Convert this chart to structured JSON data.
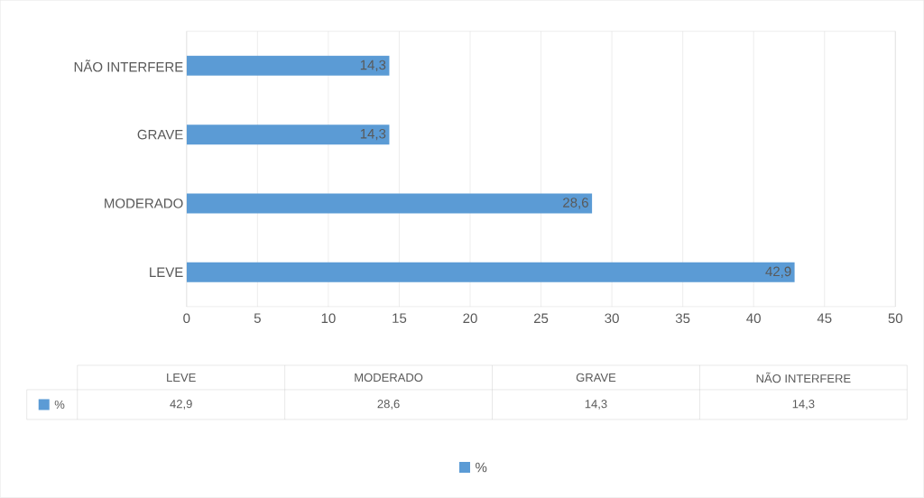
{
  "chart_data": {
    "type": "bar",
    "orientation": "horizontal",
    "categories": [
      "NÃO INTERFERE",
      "GRAVE",
      "MODERADO",
      "LEVE"
    ],
    "series": [
      {
        "name": "%",
        "color": "#5b9bd5",
        "values": [
          14.3,
          14.3,
          28.6,
          42.9
        ],
        "value_labels": [
          "14,3",
          "14,3",
          "28,6",
          "42,9"
        ]
      }
    ],
    "xlim": [
      0,
      50
    ],
    "xticks": [
      0,
      5,
      10,
      15,
      20,
      25,
      30,
      35,
      40,
      45,
      50
    ],
    "grid": "x",
    "legend": "bottom"
  }
}
